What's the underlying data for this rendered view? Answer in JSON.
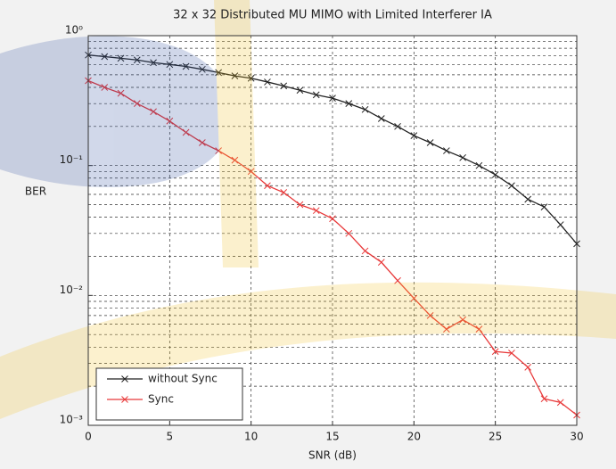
{
  "chart_data": {
    "type": "line",
    "title": "32 x 32 Distributed MU MIMO with Limited Interferer IA",
    "x_label": "SNR (dB)",
    "y_label": "BER",
    "x": [
      0,
      1,
      2,
      3,
      4,
      5,
      6,
      7,
      8,
      9,
      10,
      11,
      12,
      13,
      14,
      15,
      16,
      17,
      18,
      19,
      20,
      21,
      22,
      23,
      24,
      25,
      26,
      27,
      28,
      29,
      30
    ],
    "series": [
      {
        "name": "without Sync",
        "color": "#222222",
        "values": [
          0.71,
          0.69,
          0.67,
          0.65,
          0.62,
          0.6,
          0.58,
          0.55,
          0.52,
          0.49,
          0.47,
          0.44,
          0.41,
          0.38,
          0.35,
          0.33,
          0.3,
          0.27,
          0.23,
          0.2,
          0.17,
          0.15,
          0.13,
          0.115,
          0.1,
          0.085,
          0.07,
          0.055,
          0.048,
          0.035,
          0.025
        ]
      },
      {
        "name": "Sync",
        "color": "#e8393a",
        "values": [
          0.45,
          0.4,
          0.36,
          0.3,
          0.26,
          0.22,
          0.18,
          0.15,
          0.13,
          0.11,
          0.09,
          0.07,
          0.062,
          0.05,
          0.045,
          0.039,
          0.03,
          0.022,
          0.018,
          0.013,
          0.0095,
          0.007,
          0.0055,
          0.0065,
          0.0055,
          0.0037,
          0.0036,
          0.0028,
          0.0016,
          0.0015,
          0.0012
        ]
      }
    ],
    "xlim": [
      0,
      30
    ],
    "xticks": [
      0,
      5,
      10,
      15,
      20,
      25,
      30
    ],
    "ylim": [
      0.001,
      1
    ],
    "yticks": [
      {
        "value": 0.001,
        "label": "10⁻³"
      },
      {
        "value": 0.01,
        "label": "10⁻²"
      },
      {
        "value": 0.1,
        "label": "10⁻¹"
      },
      {
        "value": 1,
        "label": "10⁰"
      }
    ],
    "y_log": true,
    "grid": true,
    "legend": "lower left"
  }
}
